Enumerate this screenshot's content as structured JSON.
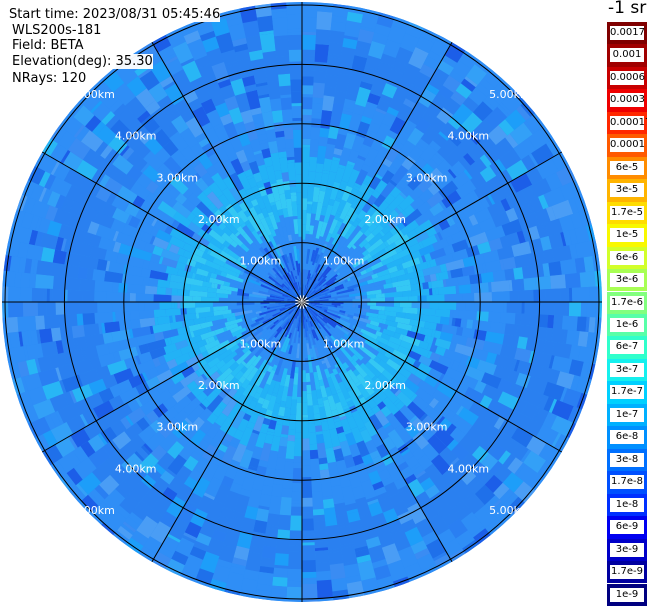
{
  "header": {
    "start_time": "Start time: 2023/08/31 05:45:46",
    "instrument": "WLS200s-181",
    "field": "Field: BETA",
    "elevation": "Elevation(deg): 35.30",
    "nrays": "NRays: 120"
  },
  "colorbar": {
    "unit_label": "-1 sr",
    "ticks": [
      "0.0017",
      "0.001",
      "0.0006",
      "0.0003",
      "0.00017",
      "0.0001",
      "6e-5",
      "3e-5",
      "1.7e-5",
      "1e-5",
      "6e-6",
      "3e-6",
      "1.7e-6",
      "1e-6",
      "6e-7",
      "3e-7",
      "1.7e-7",
      "1e-7",
      "6e-8",
      "3e-8",
      "1.7e-8",
      "1e-8",
      "6e-9",
      "3e-9",
      "1.7e-9",
      "1e-9"
    ],
    "colors": [
      "#7f0000",
      "#a00000",
      "#c80000",
      "#ee0000",
      "#ff2800",
      "#ff5a00",
      "#ff8c00",
      "#ffb400",
      "#ffdc00",
      "#f8f800",
      "#d2ff2a",
      "#a8ff54",
      "#82ff7e",
      "#5aff a6",
      "#30ffcc",
      "#16f0ee",
      "#00d0ff",
      "#00b0ff",
      "#0090ff",
      "#0070ff",
      "#0050ff",
      "#0030ff",
      "#0000f0",
      "#0000c8",
      "#0000a0",
      "#000080"
    ]
  },
  "chart_data": {
    "type": "heatmap",
    "projection": "polar (PPI scan)",
    "field": "BETA",
    "rings": [
      {
        "range_km": 1.0,
        "label": "1.00km"
      },
      {
        "range_km": 2.0,
        "label": "2.00km"
      },
      {
        "range_km": 3.0,
        "label": "3.00km"
      },
      {
        "range_km": 4.0,
        "label": "4.00km"
      },
      {
        "range_km": 5.0,
        "label": "5.00km"
      }
    ],
    "max_range_km": 5.05,
    "spoke_angles_deg": [
      0,
      30,
      60,
      90,
      120,
      150,
      180,
      210,
      240,
      270,
      300,
      330
    ],
    "radial_profile": [
      {
        "range_km": 0.0,
        "level": "1e-8"
      },
      {
        "range_km": 0.5,
        "level": "3e-8"
      },
      {
        "range_km": 1.5,
        "level": "1e-7"
      },
      {
        "range_km": 2.5,
        "level": "3e-8"
      },
      {
        "range_km": 3.5,
        "level": "1.7e-8"
      },
      {
        "range_km": 4.5,
        "level": "3e-8"
      },
      {
        "range_km": 5.0,
        "level": "3e-8"
      }
    ]
  }
}
